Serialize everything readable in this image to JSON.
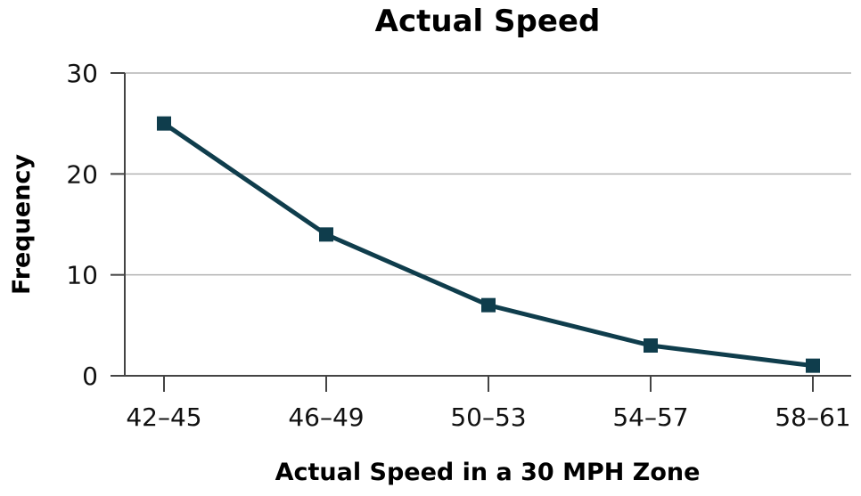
{
  "chart_data": {
    "type": "line",
    "title": "Actual Speed",
    "xlabel": "Actual Speed in a 30 MPH Zone",
    "ylabel": "Frequency",
    "categories": [
      "42–45",
      "46–49",
      "50–53",
      "54–57",
      "58–61"
    ],
    "series": [
      {
        "values": [
          25,
          14,
          7,
          3,
          1
        ]
      }
    ],
    "ylim": [
      0,
      30
    ],
    "yticks": [
      "0",
      "10",
      "20",
      "30"
    ],
    "grid": true,
    "marker": "square",
    "line_color": "#0f3d4c"
  }
}
